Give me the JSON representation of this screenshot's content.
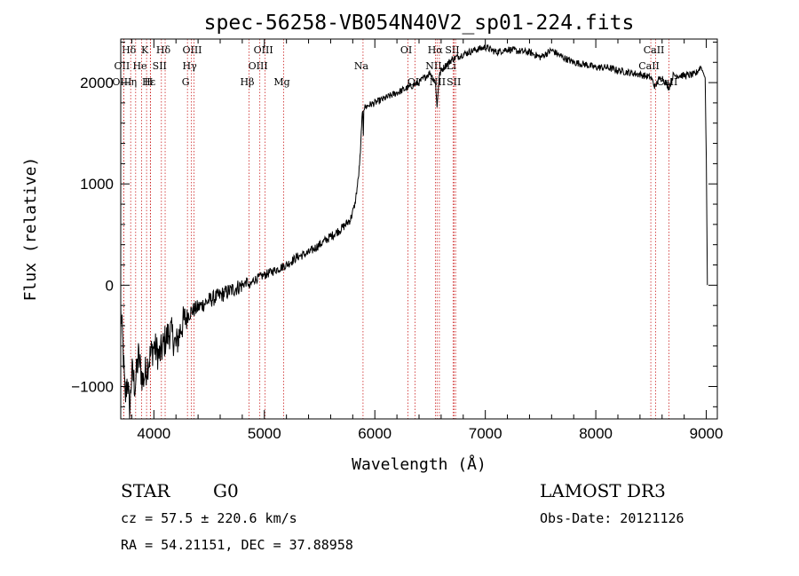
{
  "chart_data": {
    "type": "line",
    "title": "spec-56258-VB054N40V2_sp01-224.fits",
    "xlabel": "Wavelength (Å)",
    "ylabel": "Flux (relative)",
    "xlim": [
      3700,
      9100
    ],
    "ylim": [
      -1320,
      2430
    ],
    "x_ticks": [
      4000,
      5000,
      6000,
      7000,
      8000,
      9000
    ],
    "x_tick_labels": [
      "4000",
      "5000",
      "6000",
      "7000",
      "8000",
      "9000"
    ],
    "y_ticks": [
      -1000,
      0,
      1000,
      2000
    ],
    "y_tick_labels": [
      "−1000",
      "0",
      "1000",
      "2000"
    ],
    "series": [
      {
        "name": "flux",
        "x": [
          3700,
          3720,
          3740,
          3760,
          3780,
          3800,
          3830,
          3860,
          3900,
          3950,
          4000,
          4050,
          4100,
          4150,
          4200,
          4250,
          4300,
          4350,
          4400,
          4500,
          4600,
          4700,
          4800,
          4850,
          4861,
          4900,
          5000,
          5100,
          5200,
          5300,
          5400,
          5500,
          5600,
          5700,
          5780,
          5820,
          5850,
          5870,
          5880,
          5890,
          5896,
          5900,
          5950,
          6000,
          6100,
          6200,
          6300,
          6400,
          6500,
          6550,
          6563,
          6580,
          6600,
          6650,
          6700,
          6800,
          6900,
          7000,
          7100,
          7200,
          7300,
          7400,
          7500,
          7600,
          7700,
          7800,
          7900,
          8000,
          8100,
          8200,
          8300,
          8400,
          8500,
          8540,
          8560,
          8600,
          8662,
          8700,
          8800,
          8900,
          8950,
          8990,
          9000,
          9010
        ],
        "y": [
          -250,
          -600,
          -1150,
          -900,
          -1280,
          -850,
          -1000,
          -700,
          -950,
          -750,
          -600,
          -700,
          -550,
          -450,
          -600,
          -400,
          -300,
          -250,
          -220,
          -150,
          -100,
          -50,
          0,
          40,
          -30,
          50,
          100,
          150,
          200,
          280,
          320,
          400,
          480,
          560,
          650,
          800,
          1050,
          1300,
          1600,
          1700,
          1500,
          1750,
          1780,
          1800,
          1850,
          1900,
          1950,
          2000,
          2100,
          2000,
          1750,
          2050,
          2120,
          2180,
          2230,
          2280,
          2320,
          2350,
          2300,
          2330,
          2310,
          2300,
          2250,
          2320,
          2250,
          2200,
          2180,
          2150,
          2150,
          2120,
          2100,
          2080,
          2050,
          1950,
          2020,
          2050,
          1950,
          2070,
          2070,
          2080,
          2160,
          2050,
          1250,
          0
        ]
      }
    ],
    "spectral_lines": [
      {
        "name": "Hδ",
        "wavelength": 3790,
        "row": 0
      },
      {
        "name": "K",
        "wavelength": 3934,
        "row": 0
      },
      {
        "name": "Hδ",
        "wavelength": 4102,
        "row": 0
      },
      {
        "name": "OIII",
        "wavelength": 4363,
        "row": 0
      },
      {
        "name": "OIII",
        "wavelength": 5007,
        "row": 0
      },
      {
        "name": "OI",
        "wavelength": 6300,
        "row": 0
      },
      {
        "name": "Hα",
        "wavelength": 6563,
        "row": 0
      },
      {
        "name": "SII",
        "wavelength": 6717,
        "row": 0
      },
      {
        "name": "CaII",
        "wavelength": 8542,
        "row": 0
      },
      {
        "name": "OII",
        "wavelength": 3727,
        "row": 1
      },
      {
        "name": "He",
        "wavelength": 3889,
        "row": 1
      },
      {
        "name": "SII",
        "wavelength": 4068,
        "row": 1
      },
      {
        "name": "Hγ",
        "wavelength": 4340,
        "row": 1
      },
      {
        "name": "OIII",
        "wavelength": 4959,
        "row": 1
      },
      {
        "name": "Na",
        "wavelength": 5893,
        "row": 1
      },
      {
        "name": "NII",
        "wavelength": 6548,
        "row": 1
      },
      {
        "name": "Li",
        "wavelength": 6708,
        "row": 1
      },
      {
        "name": "CaII",
        "wavelength": 8498,
        "row": 1
      },
      {
        "name": "OIII",
        "wavelength": 3727,
        "row": 2
      },
      {
        "name": "Hε",
        "wavelength": 3970,
        "row": 2
      },
      {
        "name": "η",
        "wavelength": 3835,
        "row": 2
      },
      {
        "name": "H",
        "wavelength": 3968,
        "row": 2
      },
      {
        "name": "G",
        "wavelength": 4304,
        "row": 2
      },
      {
        "name": "Hβ",
        "wavelength": 4861,
        "row": 2
      },
      {
        "name": "Mg",
        "wavelength": 5175,
        "row": 2
      },
      {
        "name": "OI",
        "wavelength": 6364,
        "row": 2
      },
      {
        "name": "NII",
        "wavelength": 6584,
        "row": 2
      },
      {
        "name": "SII",
        "wavelength": 6731,
        "row": 2
      },
      {
        "name": "CaII",
        "wavelength": 8662,
        "row": 2
      }
    ]
  },
  "info": {
    "class": "STAR",
    "subclass": "G0",
    "survey": "LAMOST DR3",
    "cz": "cz = 57.5 ± 220.6 km/s",
    "obs_date": "Obs-Date: 20121126",
    "radec": "RA =  54.21151, DEC =  37.88958"
  },
  "colors": {
    "line": "#000000",
    "marker": "#cc2222",
    "axes": "#000000"
  }
}
